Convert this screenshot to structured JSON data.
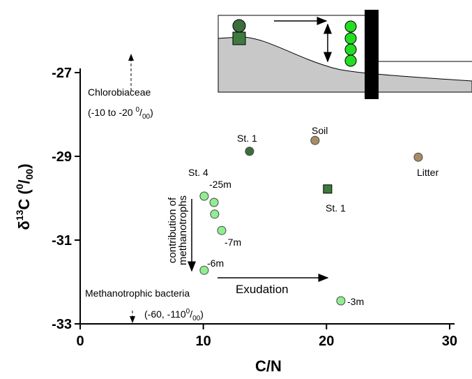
{
  "chart_data": {
    "type": "scatter",
    "x_label": "C/N",
    "y_label": [
      "δ",
      "13",
      "C  (",
      "0",
      "/",
      "00",
      ")"
    ],
    "xlim": [
      0,
      30.4
    ],
    "ylim": [
      -33,
      -26.9
    ],
    "xticks": [
      0,
      10,
      20,
      30
    ],
    "yticks": [
      -33,
      -31,
      -29,
      -27
    ],
    "series": [
      {
        "color": "#3b6e3b",
        "marker": "circle",
        "x": [
          13.75
        ],
        "y": [
          -28.88
        ]
      },
      {
        "color": "#3e7a3e",
        "marker": "square",
        "x": [
          20.09
        ],
        "y": [
          -29.78
        ]
      },
      {
        "color": "#a88c62",
        "marker": "circle",
        "x": [
          19.07,
          27.45
        ],
        "y": [
          -28.62,
          -29.02
        ]
      },
      {
        "color": "#90ee90",
        "marker": "circle",
        "x": [
          10.07,
          10.87,
          10.92,
          11.49,
          10.07,
          21.17
        ],
        "y": [
          -29.95,
          -30.1,
          -30.38,
          -30.77,
          -31.72,
          -32.45
        ]
      }
    ],
    "annotations": [
      "St. 1",
      "Soil",
      "Litter",
      "St. 1",
      "St. 4",
      "-25m",
      "-7m",
      "-6m",
      "-3m",
      "Exudation",
      "contribution of",
      "methanotrophs",
      "Chlorobiaceae",
      "Methanotrophic bacteria"
    ],
    "ranges": [
      [
        "(-10  to -20 ",
        "0",
        "/",
        "00",
        ")"
      ],
      [
        "(-60, -110",
        "0",
        "/",
        "00",
        ")"
      ]
    ]
  }
}
